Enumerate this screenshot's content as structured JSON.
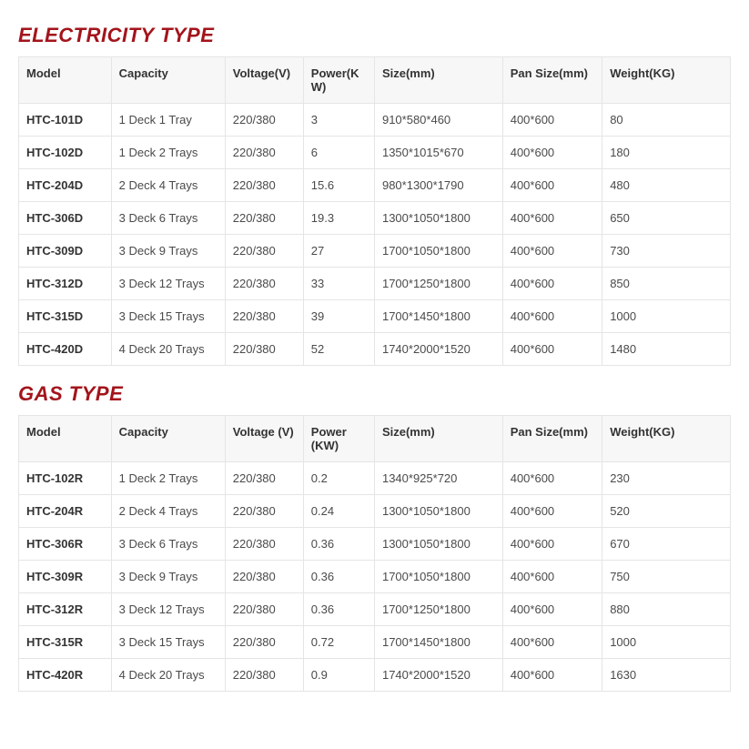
{
  "colors": {
    "title": "#a3141b",
    "header_bg": "#f7f7f7",
    "border": "#e5e5e5",
    "text": "#4a4a4a",
    "bold_text": "#333333",
    "background": "#ffffff"
  },
  "typography": {
    "title_fontsize": 22,
    "title_family": "Impact",
    "body_fontsize": 13,
    "body_family": "Arial"
  },
  "col_widths_pct": [
    13,
    16,
    11,
    10,
    18,
    14,
    18
  ],
  "sections": [
    {
      "title": "ELECTRICITY TYPE",
      "columns": [
        "Model",
        "Capacity",
        "Voltage(V)",
        "Power(KW)",
        "Size(mm)",
        "Pan Size(mm)",
        "Weight(KG)"
      ],
      "rows": [
        [
          "HTC-101D",
          "1 Deck 1 Tray",
          "220/380",
          "3",
          "910*580*460",
          "400*600",
          "80"
        ],
        [
          "HTC-102D",
          "1 Deck 2 Trays",
          "220/380",
          "6",
          "1350*1015*670",
          "400*600",
          "180"
        ],
        [
          "HTC-204D",
          "2 Deck 4 Trays",
          "220/380",
          "15.6",
          "980*1300*1790",
          "400*600",
          "480"
        ],
        [
          "HTC-306D",
          "3 Deck 6 Trays",
          "220/380",
          "19.3",
          "1300*1050*1800",
          "400*600",
          "650"
        ],
        [
          "HTC-309D",
          "3 Deck 9 Trays",
          "220/380",
          "27",
          "1700*1050*1800",
          "400*600",
          "730"
        ],
        [
          "HTC-312D",
          "3 Deck 12 Trays",
          "220/380",
          "33",
          "1700*1250*1800",
          "400*600",
          "850"
        ],
        [
          "HTC-315D",
          "3 Deck 15 Trays",
          "220/380",
          "39",
          "1700*1450*1800",
          "400*600",
          "1000"
        ],
        [
          "HTC-420D",
          "4 Deck 20 Trays",
          "220/380",
          "52",
          "1740*2000*1520",
          "400*600",
          "1480"
        ]
      ]
    },
    {
      "title": "GAS TYPE",
      "columns": [
        "Model",
        "Capacity",
        "Voltage (V)",
        "Power (KW)",
        "Size(mm)",
        "Pan Size(mm)",
        "Weight(KG)"
      ],
      "rows": [
        [
          "HTC-102R",
          "1 Deck 2 Trays",
          "220/380",
          "0.2",
          "1340*925*720",
          "400*600",
          "230"
        ],
        [
          "HTC-204R",
          "2 Deck 4 Trays",
          "220/380",
          "0.24",
          "1300*1050*1800",
          "400*600",
          "520"
        ],
        [
          "HTC-306R",
          "3 Deck 6 Trays",
          "220/380",
          "0.36",
          "1300*1050*1800",
          "400*600",
          "670"
        ],
        [
          "HTC-309R",
          "3 Deck 9 Trays",
          "220/380",
          "0.36",
          "1700*1050*1800",
          "400*600",
          "750"
        ],
        [
          "HTC-312R",
          "3 Deck 12 Trays",
          "220/380",
          "0.36",
          "1700*1250*1800",
          "400*600",
          "880"
        ],
        [
          "HTC-315R",
          "3 Deck 15 Trays",
          "220/380",
          "0.72",
          "1700*1450*1800",
          "400*600",
          "1000"
        ],
        [
          "HTC-420R",
          "4 Deck 20 Trays",
          "220/380",
          "0.9",
          "1740*2000*1520",
          "400*600",
          "1630"
        ]
      ]
    }
  ]
}
